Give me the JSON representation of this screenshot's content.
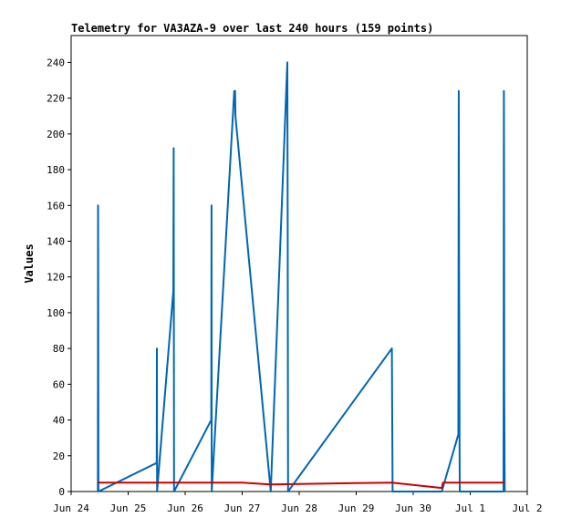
{
  "chart_data": {
    "type": "line",
    "title": "Telemetry for VA3AZA-9 over last 240 hours (159 points)",
    "xlabel": "",
    "ylabel": "Values",
    "x_ticks": [
      "Jun 24",
      "Jun 25",
      "Jun 26",
      "Jun 27",
      "Jun 28",
      "Jun 29",
      "Jun 30",
      "Jul 1",
      "Jul 2"
    ],
    "xlim": [
      "Jun 24 00:00",
      "Jul 2 00:00"
    ],
    "y_ticks": [
      0,
      20,
      40,
      60,
      80,
      100,
      120,
      140,
      160,
      180,
      200,
      220,
      240
    ],
    "ylim": [
      0,
      255
    ],
    "grid": false,
    "legend": "none",
    "series": [
      {
        "color": "#0066b3",
        "points": [
          [
            "Jun 24 11:15",
            0
          ],
          [
            "Jun 24 11:20",
            160
          ],
          [
            "Jun 24 11:25",
            96
          ],
          [
            "Jun 24 11:30",
            0
          ],
          [
            "Jun 25 12:00",
            16
          ],
          [
            "Jun 25 12:05",
            80
          ],
          [
            "Jun 25 12:10",
            0
          ],
          [
            "Jun 25 19:00",
            112
          ],
          [
            "Jun 25 19:10",
            192
          ],
          [
            "Jun 25 19:20",
            0
          ],
          [
            "Jun 26 11:00",
            40
          ],
          [
            "Jun 26 11:05",
            160
          ],
          [
            "Jun 26 11:10",
            0
          ],
          [
            "Jun 26 20:40",
            224
          ],
          [
            "Jun 26 21:00",
            224
          ],
          [
            "Jun 26 21:10",
            210
          ],
          [
            "Jun 27 12:00",
            0
          ],
          [
            "Jun 27 19:00",
            240
          ],
          [
            "Jun 27 19:10",
            144
          ],
          [
            "Jun 27 19:20",
            0
          ],
          [
            "Jun 29 15:00",
            80
          ],
          [
            "Jun 29 15:10",
            40
          ],
          [
            "Jun 29 15:20",
            0
          ],
          [
            "Jun 30 12:00",
            0
          ],
          [
            "Jun 30 19:00",
            32
          ],
          [
            "Jun 30 19:10",
            224
          ],
          [
            "Jun 30 19:15",
            168
          ],
          [
            "Jun 30 19:20",
            120
          ],
          [
            "Jun 30 19:25",
            72
          ],
          [
            "Jun 30 19:30",
            24
          ],
          [
            "Jun 30 19:35",
            0
          ],
          [
            "Jul 1 14:00",
            0
          ],
          [
            "Jul 1 14:10",
            224
          ],
          [
            "Jul 1 14:15",
            168
          ],
          [
            "Jul 1 14:20",
            56
          ],
          [
            "Jul 1 14:25",
            32
          ],
          [
            "Jul 1 14:30",
            0
          ]
        ]
      },
      {
        "color": "#cc0000",
        "points": [
          [
            "Jun 24 11:15",
            5
          ],
          [
            "Jun 27 00:00",
            5
          ],
          [
            "Jun 27 12:00",
            4
          ],
          [
            "Jun 29 15:00",
            5
          ],
          [
            "Jun 30 12:00",
            2
          ],
          [
            "Jun 30 12:30",
            5
          ],
          [
            "Jul 1 14:30",
            5
          ]
        ]
      }
    ]
  }
}
